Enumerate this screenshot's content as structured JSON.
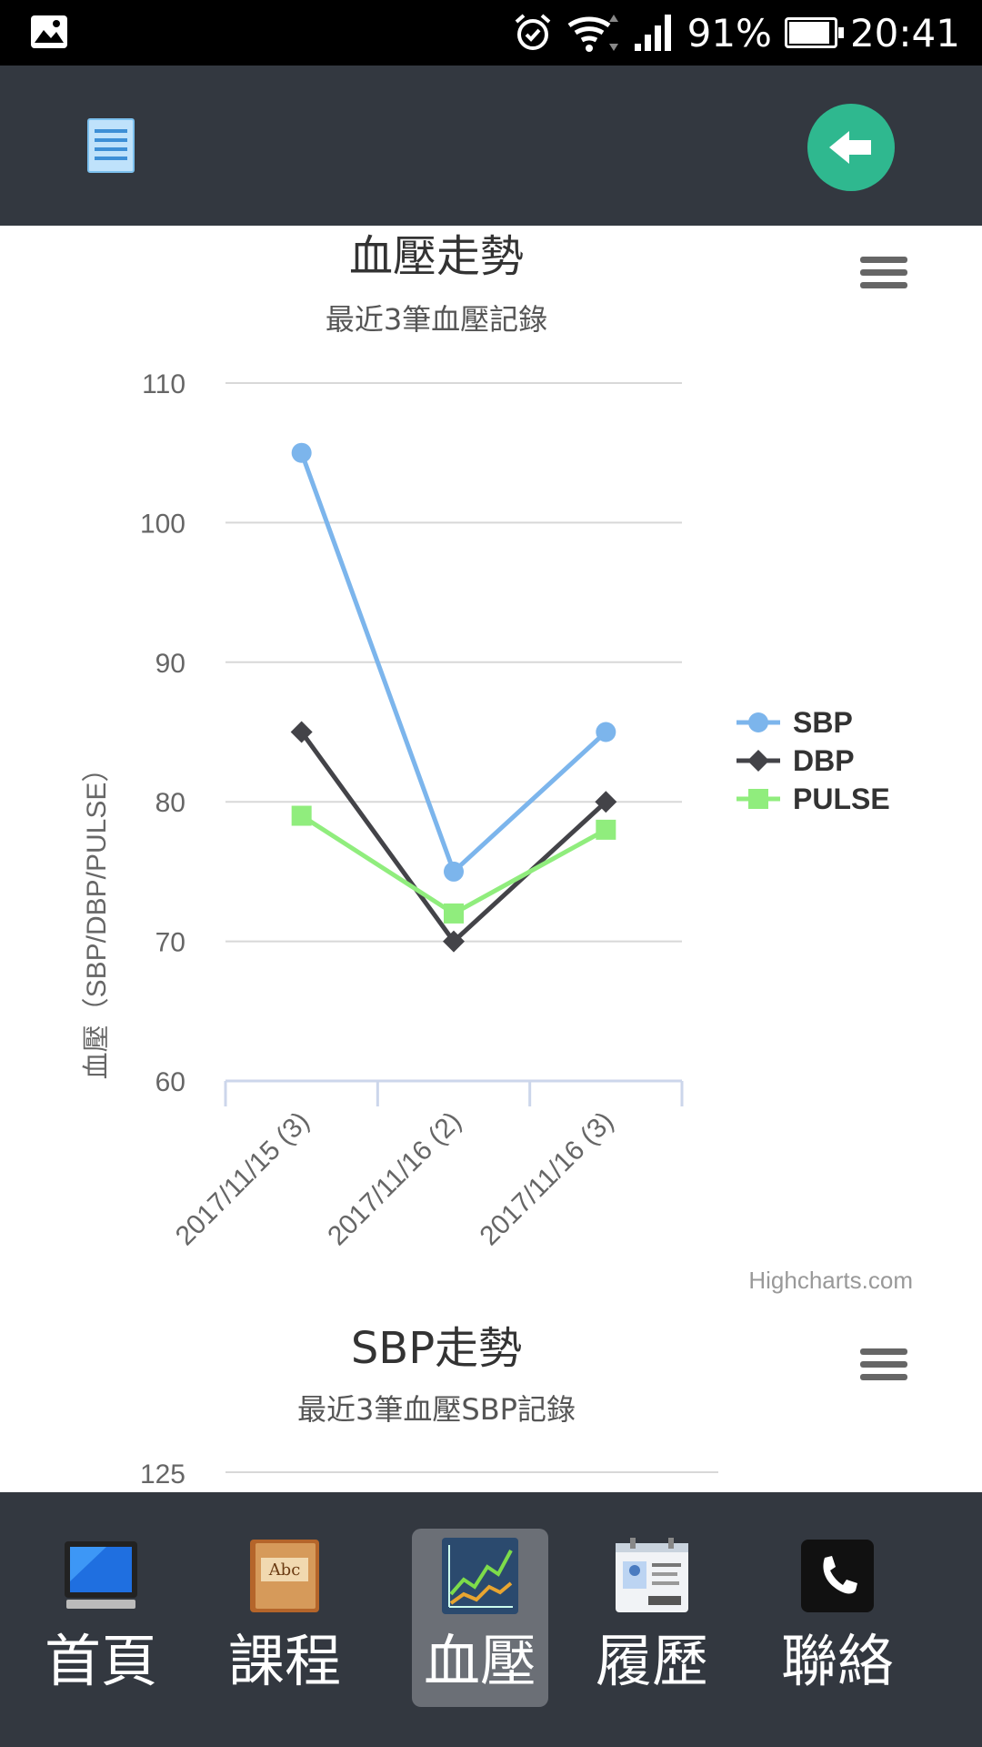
{
  "status_bar": {
    "battery_text": "91%",
    "battery_level": 0.91,
    "time": "20:41",
    "icons": [
      "gallery-icon",
      "alarm-icon",
      "wifi-icon",
      "signal-icon",
      "battery-icon"
    ]
  },
  "header": {
    "menu_icon": "list-icon",
    "back_icon": "back-arrow-icon",
    "colors": {
      "background": "#333840",
      "back_button": "#2fb88f"
    }
  },
  "charts": [
    {
      "title": "血壓走勢",
      "subtitle": "最近3筆血壓記錄",
      "credit": "Highcharts.com"
    },
    {
      "title": "SBP走勢",
      "subtitle": "最近3筆血壓SBP記錄"
    }
  ],
  "chart_data": [
    {
      "type": "line",
      "title": "血壓走勢",
      "subtitle": "最近3筆血壓記錄",
      "categories": [
        "2017/11/15 (3)",
        "2017/11/16 (2)",
        "2017/11/16 (3)"
      ],
      "ylabel": "血壓（SBP/DBP/PULSE）",
      "xlabel": "",
      "ylim": [
        60,
        110
      ],
      "yticks": [
        60,
        70,
        80,
        90,
        100,
        110
      ],
      "grid": true,
      "legend": "right",
      "series": [
        {
          "name": "SBP",
          "values": [
            105,
            75,
            85
          ],
          "color": "#7cb5ec",
          "marker": "circle"
        },
        {
          "name": "DBP",
          "values": [
            85,
            70,
            80
          ],
          "color": "#434348",
          "marker": "diamond"
        },
        {
          "name": "PULSE",
          "values": [
            79,
            72,
            78
          ],
          "color": "#90ed7d",
          "marker": "square"
        }
      ]
    },
    {
      "type": "line",
      "title": "SBP走勢",
      "subtitle": "最近3筆血壓SBP記錄",
      "visible_yticks": [
        125
      ]
    }
  ],
  "bottom_nav": {
    "items": [
      {
        "label": "首頁",
        "icon": "monitor-icon",
        "active": false
      },
      {
        "label": "課程",
        "icon": "book-icon",
        "active": false
      },
      {
        "label": "血壓",
        "icon": "chart-icon",
        "active": true
      },
      {
        "label": "履歷",
        "icon": "id-card-icon",
        "active": false
      },
      {
        "label": "聯絡",
        "icon": "phone-icon",
        "active": false
      }
    ]
  }
}
